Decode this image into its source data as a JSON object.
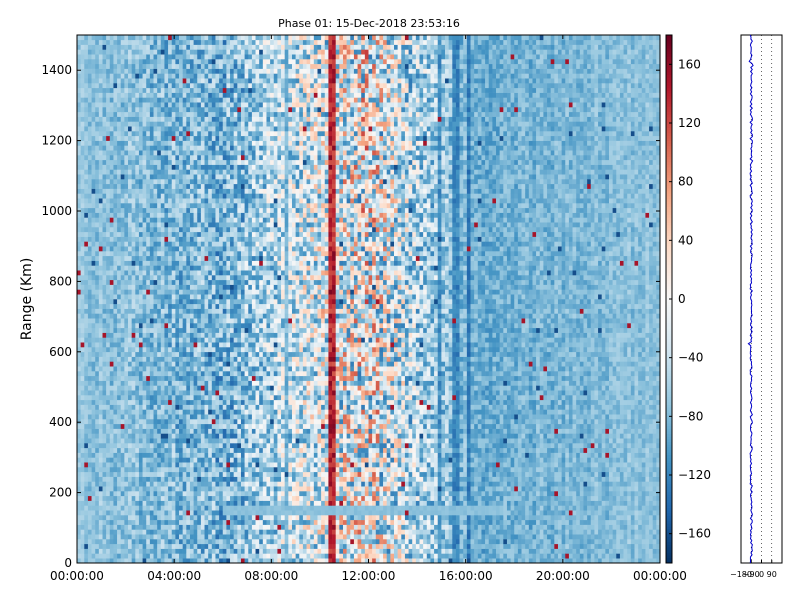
{
  "chart_data": [
    {
      "type": "heatmap",
      "title": "Phase 01: 15-Dec-2018 23:53:16",
      "xlabel": "",
      "ylabel": "Range (Km)",
      "x_ticks": [
        "00:00:00",
        "04:00:00",
        "08:00:00",
        "12:00:00",
        "16:00:00",
        "20:00:00",
        "00:00:00"
      ],
      "x_range_hours": [
        0,
        24
      ],
      "y_ticks": [
        0,
        200,
        400,
        600,
        800,
        1000,
        1200,
        1400
      ],
      "ylim": [
        0,
        1500
      ],
      "colormap": "RdBu_r",
      "grid": false,
      "colorbar": {
        "ticks": [
          -160,
          -120,
          -80,
          -40,
          0,
          40,
          80,
          120,
          160
        ],
        "vmin": -180,
        "vmax": 180
      },
      "column_baseline_by_hour": [
        {
          "hour": 0,
          "value": -70
        },
        {
          "hour": 6,
          "value": -85
        },
        {
          "hour": 8.5,
          "value": -40
        },
        {
          "hour": 12,
          "value": 0
        },
        {
          "hour": 14.5,
          "value": -60
        },
        {
          "hour": 17,
          "value": -90
        },
        {
          "hour": 24,
          "value": -70
        }
      ],
      "noise_amplitude_by_hour": [
        {
          "hour": 0,
          "value": 15
        },
        {
          "hour": 8.5,
          "value": 70
        },
        {
          "hour": 12,
          "value": 130
        },
        {
          "hour": 14.5,
          "value": 60
        },
        {
          "hour": 16,
          "value": 25
        },
        {
          "hour": 24,
          "value": 15
        }
      ],
      "features": {
        "horizontal_band_range_km": 150,
        "horizontal_band_hours": [
          6,
          17.5
        ],
        "dark_vertical_lines_hours": [
          8.6,
          14.9,
          15.6,
          16.1
        ],
        "red_vertical_line_hours": [
          10.5,
          10.6
        ]
      }
    },
    {
      "type": "line",
      "title": "",
      "x_ticks": [
        -180,
        -90,
        0,
        90
      ],
      "xlim": [
        -180,
        180
      ],
      "ylim": [
        0,
        1500
      ],
      "series_color": "#0000cc",
      "grid": "vertical dotted",
      "mean_profile_value": -90,
      "profile_jitter_amplitude": 10
    }
  ]
}
